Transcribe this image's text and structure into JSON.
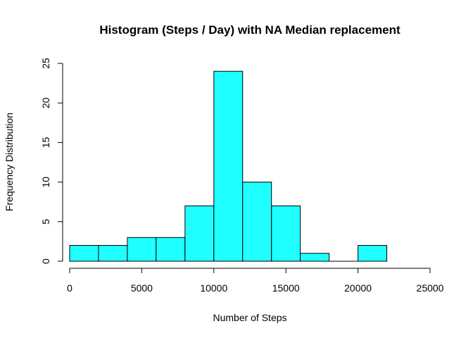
{
  "chart_data": {
    "type": "bar",
    "title": "Histogram (Steps / Day) with NA Median replacement",
    "xlabel": "Number of Steps",
    "ylabel": "Frequency Distribution",
    "bins": [
      {
        "x0": 0,
        "x1": 2000,
        "count": 2
      },
      {
        "x0": 2000,
        "x1": 4000,
        "count": 2
      },
      {
        "x0": 4000,
        "x1": 6000,
        "count": 3
      },
      {
        "x0": 6000,
        "x1": 8000,
        "count": 3
      },
      {
        "x0": 8000,
        "x1": 10000,
        "count": 7
      },
      {
        "x0": 10000,
        "x1": 12000,
        "count": 24
      },
      {
        "x0": 12000,
        "x1": 14000,
        "count": 10
      },
      {
        "x0": 14000,
        "x1": 16000,
        "count": 7
      },
      {
        "x0": 16000,
        "x1": 18000,
        "count": 1
      },
      {
        "x0": 18000,
        "x1": 20000,
        "count": 0
      },
      {
        "x0": 20000,
        "x1": 22000,
        "count": 2
      }
    ],
    "xlim": [
      0,
      25000
    ],
    "ylim": [
      0,
      25
    ],
    "xticks": [
      0,
      5000,
      10000,
      15000,
      20000,
      25000
    ],
    "yticks": [
      0,
      5,
      10,
      15,
      20,
      25
    ],
    "bar_color": "#1fffff",
    "grid": false,
    "legend": "none"
  }
}
